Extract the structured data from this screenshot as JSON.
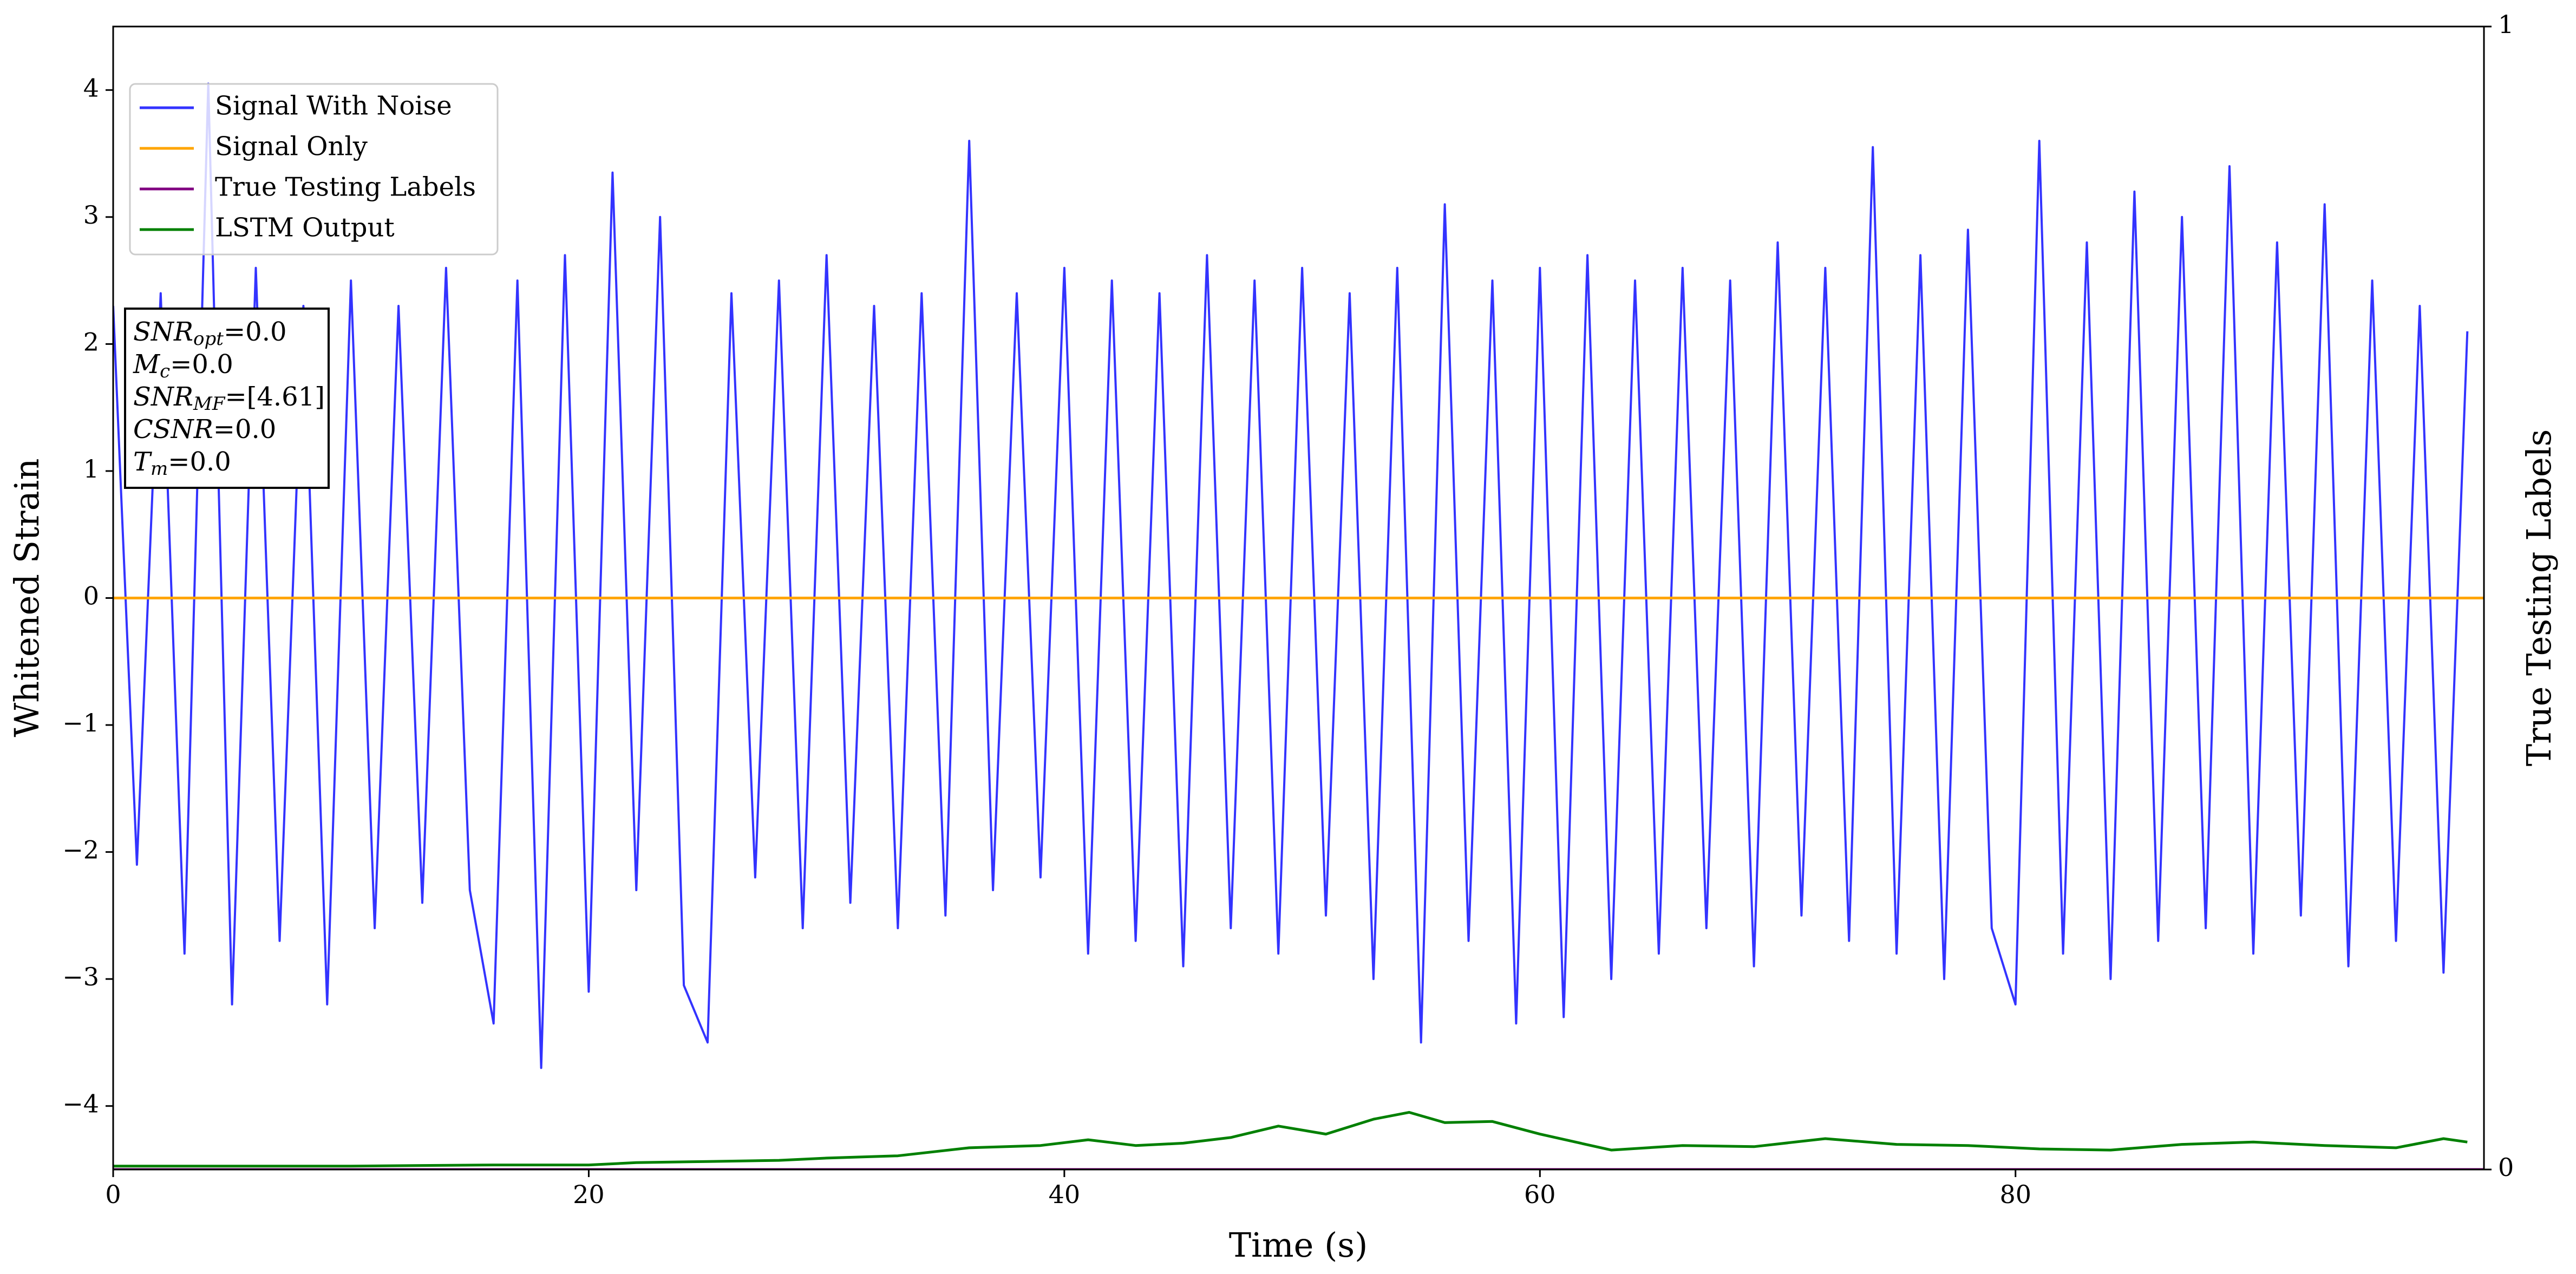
{
  "chart_data": {
    "type": "line",
    "xlabel": "Time (s)",
    "ylabel": "Whitened Strain",
    "y2label": "True Testing Labels",
    "xlim": [
      0,
      99.7
    ],
    "xticks": [
      0,
      20,
      40,
      60,
      80
    ],
    "ylim": [
      -4.5,
      4.5
    ],
    "yticks": [
      {
        "value": -4,
        "label": "−4"
      },
      {
        "value": -3,
        "label": "−3"
      },
      {
        "value": -2,
        "label": "−2"
      },
      {
        "value": -1,
        "label": "−1"
      },
      0,
      1,
      2,
      3,
      4
    ],
    "y2lim": [
      0,
      1
    ],
    "y2ticks": [
      0,
      1
    ],
    "legend": "upper left",
    "series": [
      {
        "name": "Signal With Noise",
        "color": "#3333ff",
        "x": [
          0,
          1,
          2,
          3,
          4,
          5,
          6,
          7,
          8,
          9,
          10,
          11,
          12,
          13,
          14,
          15,
          16,
          17,
          18,
          19,
          20,
          21,
          22,
          23,
          24,
          25,
          26,
          27,
          28,
          29,
          30,
          31,
          32,
          33,
          34,
          35,
          36,
          37,
          38,
          39,
          40,
          41,
          42,
          43,
          44,
          45,
          46,
          47,
          48,
          49,
          50,
          51,
          52,
          53,
          54,
          55,
          56,
          57,
          58,
          59,
          60,
          61,
          62,
          63,
          64,
          65,
          66,
          67,
          68,
          69,
          70,
          71,
          72,
          73,
          74,
          75,
          76,
          77,
          78,
          79,
          80,
          81,
          82,
          83,
          84,
          85,
          86,
          87,
          88,
          89,
          90,
          91,
          92,
          93,
          94,
          95,
          96,
          97,
          98,
          99
        ],
        "values": [
          2.3,
          -2.1,
          2.4,
          -2.8,
          4.05,
          -3.2,
          2.6,
          -2.7,
          2.3,
          -3.2,
          2.5,
          -2.6,
          2.3,
          -2.4,
          2.6,
          -2.3,
          -3.35,
          2.5,
          -3.7,
          2.7,
          -3.1,
          3.35,
          -2.3,
          3.0,
          -3.05,
          -3.5,
          2.4,
          -2.2,
          2.5,
          -2.6,
          2.7,
          -2.4,
          2.3,
          -2.6,
          2.4,
          -2.5,
          3.6,
          -2.3,
          2.4,
          -2.2,
          2.6,
          -2.8,
          2.5,
          -2.7,
          2.4,
          -2.9,
          2.7,
          -2.6,
          2.5,
          -2.8,
          2.6,
          -2.5,
          2.4,
          -3.0,
          2.6,
          -3.5,
          3.1,
          -2.7,
          2.5,
          -3.35,
          2.6,
          -3.3,
          2.7,
          -3.0,
          2.5,
          -2.8,
          2.6,
          -2.6,
          2.5,
          -2.9,
          2.8,
          -2.5,
          2.6,
          -2.7,
          3.55,
          -2.8,
          2.7,
          -3.0,
          2.9,
          -2.6,
          -3.2,
          3.6,
          -2.8,
          2.8,
          -3.0,
          3.2,
          -2.7,
          3.0,
          -2.6,
          3.4,
          -2.8,
          2.8,
          -2.5,
          3.1,
          -2.9,
          2.5,
          -2.7,
          2.3,
          -2.95,
          2.1
        ]
      },
      {
        "name": "Signal Only",
        "color": "#ffa500",
        "x": [
          0,
          99.7
        ],
        "values": [
          0,
          0
        ]
      },
      {
        "name": "True Testing Labels",
        "color": "#800080",
        "axis": "y2",
        "x": [
          0,
          99.7
        ],
        "values": [
          0,
          0
        ]
      },
      {
        "name": "LSTM Output",
        "color": "#008000",
        "axis": "y2",
        "x": [
          0,
          10,
          16,
          20,
          22,
          25,
          28,
          30,
          33,
          36,
          39,
          41,
          43,
          45,
          47,
          49,
          51,
          53,
          54.5,
          56,
          58,
          60,
          63,
          66,
          69,
          72,
          75,
          78,
          81,
          84,
          87,
          90,
          93,
          96,
          98,
          99
        ],
        "values": [
          0.003,
          0.003,
          0.004,
          0.004,
          0.006,
          0.007,
          0.008,
          0.01,
          0.012,
          0.019,
          0.021,
          0.026,
          0.021,
          0.023,
          0.028,
          0.038,
          0.031,
          0.044,
          0.05,
          0.041,
          0.042,
          0.031,
          0.017,
          0.021,
          0.02,
          0.027,
          0.022,
          0.021,
          0.018,
          0.017,
          0.022,
          0.024,
          0.021,
          0.019,
          0.027,
          0.024
        ]
      }
    ],
    "annotations": [
      {
        "base": "SNR",
        "sub": "opt",
        "text": "=0.0"
      },
      {
        "base": "M",
        "sub": "c",
        "text": "=0.0"
      },
      {
        "base": "SNR",
        "sub": "MF",
        "text": "=[4.61]"
      },
      {
        "base": "CSNR",
        "text": "=0.0"
      },
      {
        "base": "T",
        "sub": "m",
        "text": "=0.0"
      }
    ]
  }
}
